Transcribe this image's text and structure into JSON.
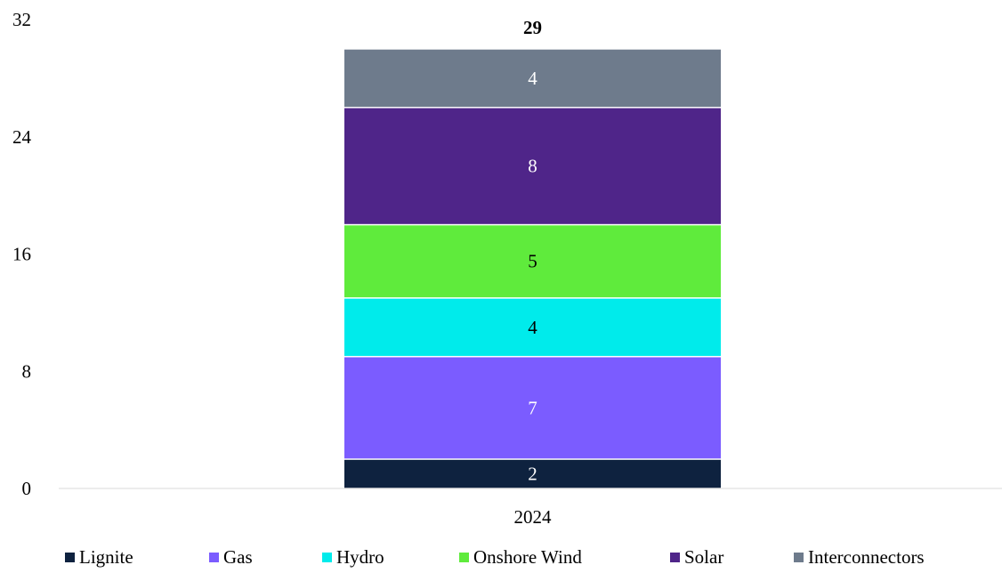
{
  "chart_data": {
    "type": "bar",
    "stacked": true,
    "categories": [
      "2024"
    ],
    "series": [
      {
        "name": "Lignite",
        "values": [
          2
        ],
        "color": "#0e223f",
        "label_color": "#ffffff"
      },
      {
        "name": "Gas",
        "values": [
          7
        ],
        "color": "#7b5cff",
        "label_color": "#ffffff"
      },
      {
        "name": "Hydro",
        "values": [
          4
        ],
        "color": "#00ebeb",
        "label_color": "#000000"
      },
      {
        "name": "Onshore Wind",
        "values": [
          5
        ],
        "color": "#5feb3c",
        "label_color": "#000000"
      },
      {
        "name": "Solar",
        "values": [
          8
        ],
        "color": "#4f2589",
        "label_color": "#ffffff"
      },
      {
        "name": "Interconnectors",
        "values": [
          4
        ],
        "color": "#6e7b8c",
        "label_color": "#ffffff"
      }
    ],
    "totals": [
      29
    ],
    "yticks": [
      0,
      8,
      16,
      24,
      32
    ],
    "ylim": [
      0,
      32
    ],
    "grid": false,
    "legend_position": "bottom"
  }
}
